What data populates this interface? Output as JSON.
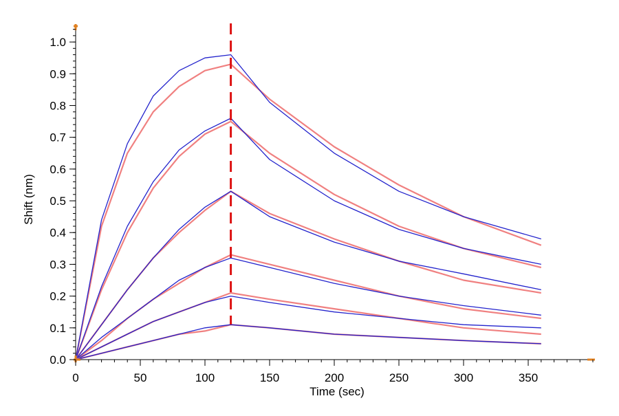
{
  "chart_data": {
    "type": "line",
    "title": "",
    "xlabel": "Time (sec)",
    "ylabel": "Shift (nm)",
    "xlim": [
      0,
      400
    ],
    "ylim": [
      0,
      1.05
    ],
    "x_ticks": [
      0,
      50,
      100,
      150,
      200,
      250,
      300,
      350
    ],
    "x_tick_labels": [
      "0",
      "50",
      "100",
      "150",
      "200",
      "250",
      "300",
      "350"
    ],
    "y_ticks": [
      0,
      0.1,
      0.2,
      0.3,
      0.4,
      0.5,
      0.6,
      0.7,
      0.8,
      0.9,
      1.0
    ],
    "y_tick_labels": [
      "0.0",
      "0.1",
      "0.2",
      "0.3",
      "0.4",
      "0.5",
      "0.6",
      "0.7",
      "0.8",
      "0.9",
      "1.0"
    ],
    "grid": false,
    "legend": "none",
    "reference_line": {
      "x": 120,
      "color": "#dd1111",
      "style": "dashed"
    },
    "colors": {
      "raw": "#2222cc",
      "fit": "#f08080",
      "axis_marker": "#e08020"
    },
    "series": [
      {
        "x": [
          0,
          20,
          40,
          60,
          80,
          100,
          120,
          150,
          200,
          250,
          300,
          360
        ],
        "raw": [
          0,
          0.44,
          0.68,
          0.83,
          0.91,
          0.95,
          0.96,
          0.81,
          0.65,
          0.53,
          0.45,
          0.38
        ],
        "fit": [
          0,
          0.42,
          0.65,
          0.78,
          0.86,
          0.91,
          0.93,
          0.82,
          0.67,
          0.55,
          0.45,
          0.36
        ]
      },
      {
        "x": [
          0,
          20,
          40,
          60,
          80,
          100,
          120,
          150,
          200,
          250,
          300,
          360
        ],
        "raw": [
          0,
          0.23,
          0.42,
          0.56,
          0.66,
          0.72,
          0.76,
          0.63,
          0.5,
          0.41,
          0.35,
          0.3
        ],
        "fit": [
          0,
          0.22,
          0.4,
          0.54,
          0.64,
          0.71,
          0.75,
          0.65,
          0.52,
          0.42,
          0.35,
          0.29
        ]
      },
      {
        "x": [
          0,
          20,
          40,
          60,
          80,
          100,
          120,
          150,
          200,
          250,
          300,
          360
        ],
        "raw": [
          0,
          0.11,
          0.22,
          0.32,
          0.41,
          0.48,
          0.53,
          0.45,
          0.37,
          0.31,
          0.27,
          0.22
        ],
        "fit": [
          0,
          0.11,
          0.22,
          0.32,
          0.4,
          0.47,
          0.53,
          0.46,
          0.38,
          0.31,
          0.25,
          0.21
        ]
      },
      {
        "x": [
          0,
          20,
          40,
          60,
          80,
          100,
          120,
          150,
          200,
          250,
          300,
          360
        ],
        "raw": [
          0,
          0.07,
          0.13,
          0.19,
          0.25,
          0.29,
          0.32,
          0.29,
          0.24,
          0.2,
          0.17,
          0.14
        ],
        "fit": [
          0,
          0.06,
          0.13,
          0.19,
          0.24,
          0.29,
          0.33,
          0.3,
          0.25,
          0.2,
          0.16,
          0.13
        ]
      },
      {
        "x": [
          0,
          20,
          40,
          60,
          80,
          100,
          120,
          150,
          200,
          250,
          300,
          360
        ],
        "raw": [
          0,
          0.04,
          0.08,
          0.12,
          0.15,
          0.18,
          0.2,
          0.18,
          0.15,
          0.13,
          0.11,
          0.1
        ],
        "fit": [
          0,
          0.04,
          0.08,
          0.12,
          0.15,
          0.18,
          0.21,
          0.19,
          0.16,
          0.13,
          0.1,
          0.08
        ]
      },
      {
        "x": [
          0,
          20,
          40,
          60,
          80,
          100,
          120,
          150,
          200,
          250,
          300,
          360
        ],
        "raw": [
          0,
          0.02,
          0.04,
          0.06,
          0.08,
          0.1,
          0.11,
          0.1,
          0.08,
          0.07,
          0.06,
          0.05
        ],
        "fit": [
          0,
          0.02,
          0.04,
          0.06,
          0.08,
          0.09,
          0.11,
          0.1,
          0.08,
          0.07,
          0.06,
          0.05
        ]
      }
    ]
  }
}
